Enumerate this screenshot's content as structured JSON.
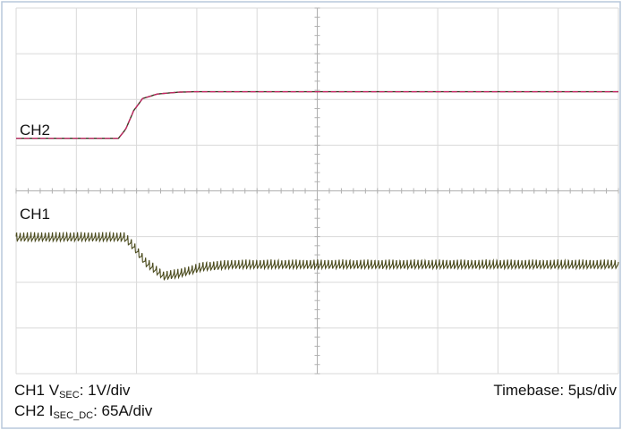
{
  "chart_data": {
    "type": "line",
    "title": "",
    "grid": true,
    "grid_divisions": {
      "x": 10,
      "y": 8
    },
    "x_unit_per_div": "5µs",
    "series": [
      {
        "name": "CH2",
        "color": "#cc2266",
        "trace_color_secondary": "#3a3a20",
        "x_div": [
          0,
          1.7,
          1.82,
          1.95,
          2.1,
          2.35,
          2.7,
          3.0,
          10
        ],
        "y_div": [
          1.15,
          1.15,
          1.35,
          1.75,
          2.02,
          2.12,
          2.16,
          2.17,
          2.17
        ]
      },
      {
        "name": "CH1",
        "color": "#4a4a1c",
        "x_div": [
          0,
          1.8,
          1.95,
          2.15,
          2.45,
          2.7,
          3.1,
          3.6,
          10
        ],
        "y_div": [
          -1.0,
          -1.0,
          -1.2,
          -1.55,
          -1.85,
          -1.8,
          -1.65,
          -1.6,
          -1.6
        ],
        "ripple_amplitude_div": 0.2
      }
    ]
  },
  "labels": {
    "ch2": "CH2",
    "ch1": "CH1"
  },
  "footer": {
    "line1_prefix": "CH1 V",
    "line1_sub": "SEC",
    "line1_suffix": ": 1V/div",
    "line2_prefix": "CH2 I",
    "line2_sub": "SEC_DC",
    "line2_suffix": ": 65A/div",
    "timebase": "Timebase: 5µs/div"
  },
  "colors": {
    "grid": "#d9d9d9",
    "frame": "#b8c8dc",
    "center_axis": "#b0b0b0"
  }
}
